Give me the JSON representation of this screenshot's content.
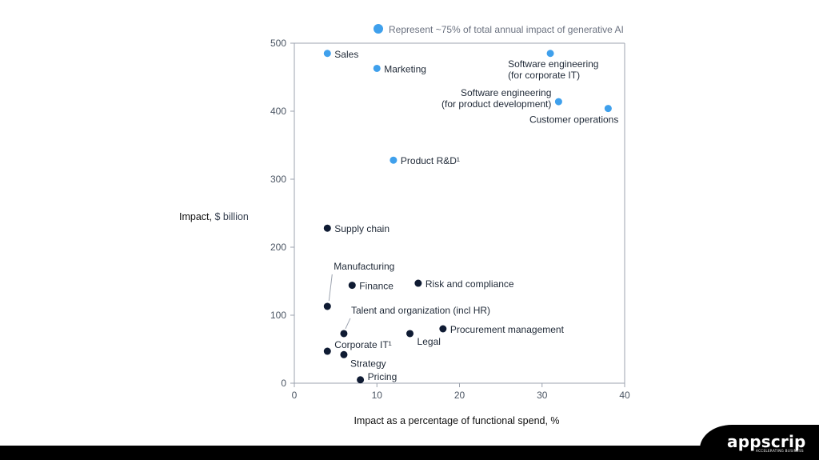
{
  "chart_data": {
    "type": "scatter",
    "legend": {
      "label": "Represent ~75% of total annual impact of generative AI",
      "color": "#3fa0ec",
      "placement": "top"
    },
    "ylabel_main": "Impact,",
    "ylabel_unit": "$ billion",
    "xlabel": "Impact as a percentage of functional spend, %",
    "xlim": [
      0,
      40
    ],
    "ylim": [
      0,
      500
    ],
    "xticks": [
      0,
      10,
      20,
      30,
      40
    ],
    "yticks": [
      0,
      100,
      200,
      300,
      400,
      500
    ],
    "grid": false,
    "series": [
      {
        "color": "#3fa0ec",
        "points": [
          {
            "label": "Sales",
            "x": 4,
            "y": 485
          },
          {
            "label": "Marketing",
            "x": 10,
            "y": 463
          },
          {
            "label": "Software engineering|(for corporate IT)",
            "x": 31,
            "y": 485
          },
          {
            "label": "Software engineering|(for product development)",
            "x": 32,
            "y": 414
          },
          {
            "label": "Customer operations",
            "x": 38,
            "y": 404
          },
          {
            "label": "Product R&D¹",
            "x": 12,
            "y": 328
          }
        ]
      },
      {
        "color": "#0f1b33",
        "points": [
          {
            "label": "Supply chain",
            "x": 4,
            "y": 228
          },
          {
            "label": "Manufacturing",
            "x": 4,
            "y": 113
          },
          {
            "label": "Finance",
            "x": 7,
            "y": 144
          },
          {
            "label": "Risk and compliance",
            "x": 15,
            "y": 147
          },
          {
            "label": "Talent and organization (incl HR)",
            "x": 6,
            "y": 73
          },
          {
            "label": "Legal",
            "x": 14,
            "y": 73
          },
          {
            "label": "Procurement management",
            "x": 18,
            "y": 80
          },
          {
            "label": "Corporate IT¹",
            "x": 4,
            "y": 47
          },
          {
            "label": "Strategy",
            "x": 6,
            "y": 42
          },
          {
            "label": "Pricing",
            "x": 8,
            "y": 5
          }
        ]
      }
    ]
  },
  "footer": {
    "brand": "appscrip",
    "tagline": "ACCELERATING BUSINESS"
  }
}
